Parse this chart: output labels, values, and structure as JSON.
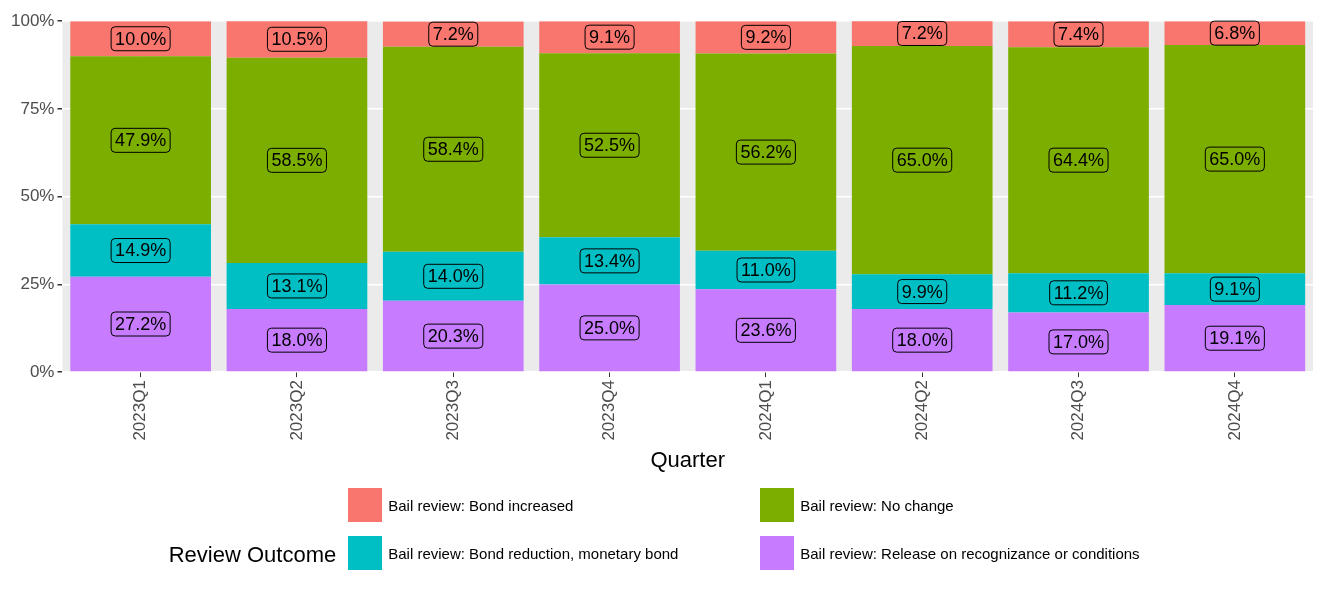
{
  "chart_data": {
    "type": "bar",
    "stacked": true,
    "xlabel": "Quarter",
    "legend_title": "Review Outcome",
    "legend": "bottom",
    "grid": true,
    "categories": [
      "2023Q1",
      "2023Q2",
      "2023Q3",
      "2023Q4",
      "2024Q1",
      "2024Q2",
      "2024Q3",
      "2024Q4"
    ],
    "ylim": [
      0,
      100
    ],
    "yticks": [
      {
        "value": 0,
        "label": "0%"
      },
      {
        "value": 25,
        "label": "25%"
      },
      {
        "value": 50,
        "label": "50%"
      },
      {
        "value": 75,
        "label": "75%"
      },
      {
        "value": 100,
        "label": "100%"
      }
    ],
    "series": [
      {
        "name": "Bail review: Release on recognizance or conditions",
        "color": "#c77cff",
        "values": [
          27.2,
          18.0,
          20.3,
          25.0,
          23.6,
          18.0,
          17.0,
          19.1
        ],
        "value_labels": [
          "27.2%",
          "18.0%",
          "20.3%",
          "25.0%",
          "23.6%",
          "18.0%",
          "17.0%",
          "19.1%"
        ]
      },
      {
        "name": "Bail review: Bond reduction, monetary bond",
        "color": "#00bfc4",
        "values": [
          14.9,
          13.1,
          14.0,
          13.4,
          11.0,
          9.9,
          11.2,
          9.1
        ],
        "value_labels": [
          "14.9%",
          "13.1%",
          "14.0%",
          "13.4%",
          "11.0%",
          "9.9%",
          "11.2%",
          "9.1%"
        ]
      },
      {
        "name": "Bail review: No change",
        "color": "#7cae00",
        "values": [
          47.9,
          58.5,
          58.4,
          52.5,
          56.2,
          65.0,
          64.4,
          65.0
        ],
        "value_labels": [
          "47.9%",
          "58.5%",
          "58.4%",
          "52.5%",
          "56.2%",
          "65.0%",
          "64.4%",
          "65.0%"
        ]
      },
      {
        "name": "Bail review: Bond increased",
        "color": "#f8766d",
        "values": [
          10.0,
          10.5,
          7.2,
          9.1,
          9.2,
          7.2,
          7.4,
          6.8
        ],
        "value_labels": [
          "10.0%",
          "10.5%",
          "7.2%",
          "9.1%",
          "9.2%",
          "7.2%",
          "7.4%",
          "6.8%"
        ]
      }
    ]
  }
}
